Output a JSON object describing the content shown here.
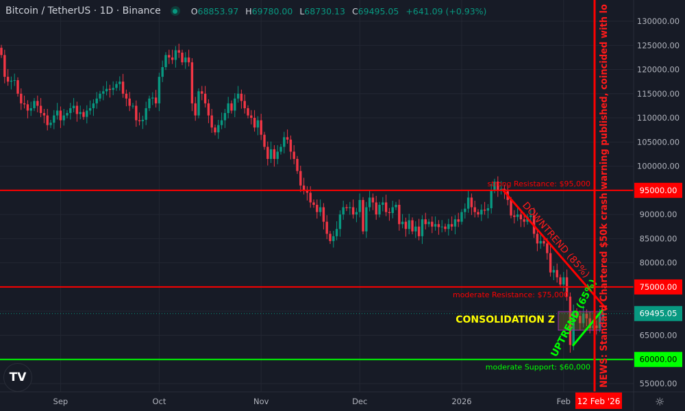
{
  "header": {
    "symbol": "Bitcoin / TetherUS · 1D · Binance",
    "o_label": "O",
    "o": "68853.97",
    "h_label": "H",
    "h": "69780.00",
    "l_label": "L",
    "l": "68730.13",
    "c_label": "C",
    "c": "69495.05",
    "change": "+641.09 (+0.93%)",
    "status_icon": "market-open-dot"
  },
  "colors": {
    "background": "#171b26",
    "up": "#089981",
    "down": "#f23645",
    "resistance": "#ff0000",
    "support": "#00ff00",
    "consolidation_text": "#ffff00",
    "consolidation_box": "#9c27b0"
  },
  "chart_data": {
    "type": "candlestick",
    "interval": "1D",
    "start_date": "2025-08-14",
    "closes": [
      123000,
      118500,
      117500,
      117700,
      117800,
      115000,
      113000,
      112800,
      111500,
      112000,
      113500,
      112500,
      111000,
      110500,
      108500,
      109000,
      110500,
      111500,
      109500,
      110500,
      111000,
      112000,
      112500,
      110800,
      111200,
      110200,
      111500,
      112000,
      113000,
      114000,
      115000,
      115500,
      116000,
      115800,
      116200,
      117000,
      117500,
      115000,
      114000,
      112500,
      112500,
      109500,
      109300,
      109600,
      112000,
      114000,
      114200,
      113000,
      118500,
      120500,
      123000,
      122500,
      122000,
      124000,
      123500,
      121500,
      122500,
      121500,
      113000,
      110500,
      115500,
      115000,
      113000,
      110500,
      108000,
      107000,
      108500,
      109500,
      111000,
      113000,
      111500,
      114000,
      115000,
      113500,
      112000,
      110500,
      110000,
      108000,
      109500,
      106500,
      104000,
      101500,
      103500,
      101500,
      103000,
      104000,
      106000,
      105500,
      103000,
      101500,
      99000,
      96000,
      95000,
      94500,
      92500,
      92000,
      90500,
      91500,
      88500,
      86000,
      84500,
      85500,
      87000,
      90000,
      91500,
      91300,
      91500,
      90000,
      90500,
      93000,
      86500,
      91500,
      93500,
      92500,
      90000,
      92000,
      92500,
      90500,
      90300,
      91500,
      92000,
      88000,
      88500,
      87000,
      88800,
      86500,
      87500,
      85500,
      89000,
      88000,
      88500,
      87500,
      88000,
      87400,
      87500,
      87000,
      88000,
      87500,
      89000,
      88500,
      90500,
      91200,
      93500,
      91500,
      90500,
      90000,
      91000,
      90800,
      91300,
      95000,
      96800,
      95000,
      95300,
      94800,
      93000,
      89800,
      89500,
      90000,
      89000,
      88500,
      89500,
      89800,
      86000,
      84000,
      84500,
      84000,
      82000,
      78000,
      78500,
      77000,
      75500,
      77000,
      73000,
      63000,
      70000,
      69000,
      67500,
      69500,
      68500,
      66500,
      67000,
      66500,
      68853.97,
      69495.05
    ],
    "ylim": [
      53000,
      134000
    ],
    "y_ticks": [
      "130000.00",
      "125000.00",
      "120000.00",
      "115000.00",
      "110000.00",
      "105000.00",
      "100000.00",
      "90000.00",
      "85000.00",
      "80000.00",
      "65000.00",
      "55000.00"
    ],
    "x_ticks": [
      {
        "label": "Sep",
        "date": "2025-09-01"
      },
      {
        "label": "Oct",
        "date": "2025-10-01"
      },
      {
        "label": "Nov",
        "date": "2025-11-01"
      },
      {
        "label": "Dec",
        "date": "2025-12-01"
      },
      {
        "label": "2026",
        "date": "2026-01-01"
      },
      {
        "label": "Feb",
        "date": "2026-02-01"
      }
    ],
    "last_price": {
      "value": 69495.05,
      "label": "69495.05"
    },
    "levels": [
      {
        "price": 95000,
        "axis_label": "95000.00",
        "text": "strong Resistance: $95,000",
        "color": "#ff0000"
      },
      {
        "price": 75000,
        "axis_label": "75000.00",
        "text": "moderate Resistance: $75,000",
        "color": "#ff0000"
      },
      {
        "price": 60000,
        "axis_label": "60000.00",
        "text": "moderate Support: $60,000",
        "color": "#00ff00"
      }
    ],
    "annotations": {
      "downtrend": "DOWNTREND (85%)",
      "uptrend": "UPTREND (65%)",
      "consolidation": "CONSOLIDATION Z",
      "news": "NEWS: Standard Chartered $50k crash warning published, coincided with lo",
      "news_date_label": "12 Feb '26"
    },
    "grid": true
  },
  "footer": {
    "logo": "TV",
    "settings_icon": "gear-icon"
  }
}
